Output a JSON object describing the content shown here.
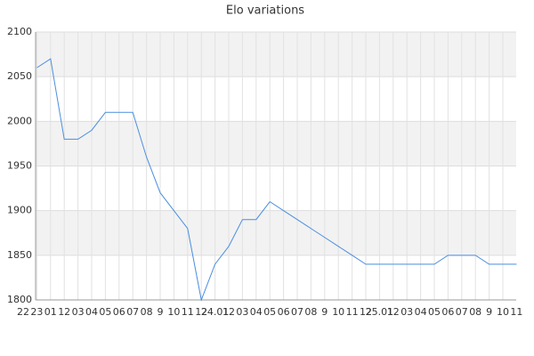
{
  "chart_data": {
    "type": "line",
    "title": "Elo variations",
    "categories": [
      "22",
      "23",
      "01",
      "12",
      "03",
      "04",
      "05",
      "06",
      "07",
      "08",
      "9",
      "10",
      "11",
      "12",
      "24.01",
      "12",
      "03",
      "04",
      "05",
      "06",
      "07",
      "08",
      "9",
      "10",
      "11",
      "12",
      "25.01",
      "12",
      "03",
      "04",
      "05",
      "06",
      "07",
      "08",
      "9",
      "10",
      "11"
    ],
    "series": [
      {
        "name": "Elo",
        "color": "#4a8ee0",
        "values": [
          null,
          2060,
          2070,
          1980,
          1980,
          1990,
          2010,
          2010,
          2010,
          1960,
          1920,
          1900,
          1880,
          1800,
          1840,
          1860,
          1890,
          1890,
          1910,
          1900,
          1890,
          1880,
          1870,
          1860,
          1850,
          1840,
          1840,
          1840,
          1840,
          1840,
          1840,
          1850,
          1850,
          1850,
          1840,
          1840,
          1840
        ]
      }
    ],
    "ylim": [
      1800,
      2100
    ],
    "yticks": [
      1800,
      1850,
      1900,
      1950,
      2000,
      2050,
      2100
    ],
    "grid": true
  }
}
